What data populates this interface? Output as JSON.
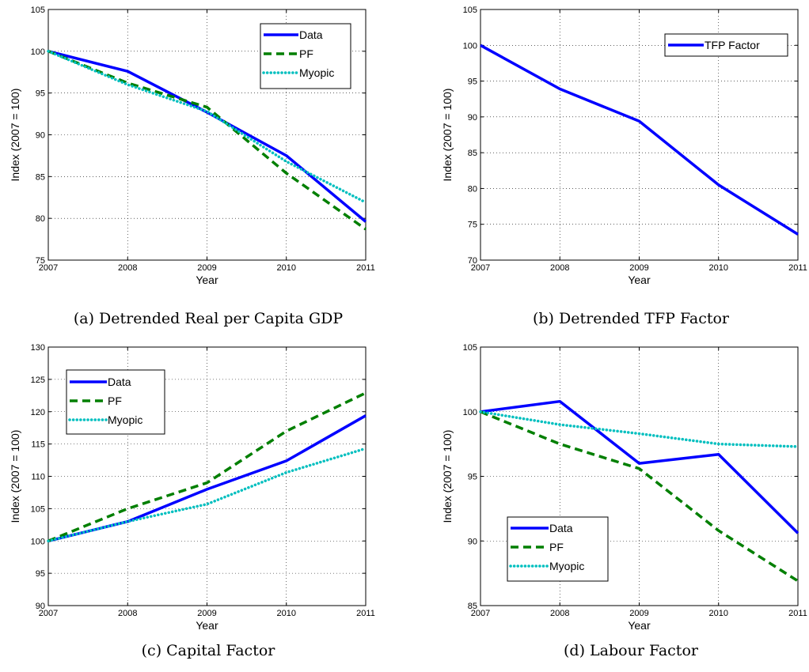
{
  "chart_data": [
    {
      "id": "a",
      "type": "line",
      "caption": "(a) Detrended Real per Capita GDP",
      "xlabel": "Year",
      "ylabel": "Index (2007 = 100)",
      "x": [
        2007,
        2008,
        2009,
        2010,
        2011
      ],
      "xlim": [
        2007,
        2011
      ],
      "ylim": [
        75,
        105
      ],
      "yticks": [
        75,
        80,
        85,
        90,
        95,
        100,
        105
      ],
      "grid": true,
      "legend_position": "top-right",
      "series": [
        {
          "name": "Data",
          "style": "solid",
          "color": "#0000ff",
          "values": [
            100,
            97.6,
            92.7,
            87.5,
            79.6
          ]
        },
        {
          "name": "PF",
          "style": "dashed",
          "color": "#007f00",
          "values": [
            100,
            96.2,
            93.3,
            85.4,
            78.7
          ]
        },
        {
          "name": "Myopic",
          "style": "dotted",
          "color": "#00bfbf",
          "values": [
            100,
            96.0,
            92.8,
            86.8,
            81.9
          ]
        }
      ]
    },
    {
      "id": "b",
      "type": "line",
      "caption": "(b) Detrended TFP Factor",
      "xlabel": "Year",
      "ylabel": "Index (2007 = 100)",
      "x": [
        2007,
        2008,
        2009,
        2010,
        2011
      ],
      "xlim": [
        2007,
        2011
      ],
      "ylim": [
        70,
        105
      ],
      "yticks": [
        70,
        75,
        80,
        85,
        90,
        95,
        100,
        105
      ],
      "grid": true,
      "legend_position": "top-right",
      "series": [
        {
          "name": "TFP Factor",
          "style": "solid",
          "color": "#0000ff",
          "values": [
            100,
            93.9,
            89.4,
            80.5,
            73.6
          ]
        }
      ]
    },
    {
      "id": "c",
      "type": "line",
      "caption": "(c) Capital Factor",
      "xlabel": "Year",
      "ylabel": "Index (2007 = 100)",
      "x": [
        2007,
        2008,
        2009,
        2010,
        2011
      ],
      "xlim": [
        2007,
        2011
      ],
      "ylim": [
        90,
        130
      ],
      "yticks": [
        90,
        95,
        100,
        105,
        110,
        115,
        120,
        125,
        130
      ],
      "grid": true,
      "legend_position": "top-left",
      "series": [
        {
          "name": "Data",
          "style": "solid",
          "color": "#0000ff",
          "values": [
            100,
            103.0,
            108.0,
            112.4,
            119.4
          ]
        },
        {
          "name": "PF",
          "style": "dashed",
          "color": "#007f00",
          "values": [
            100,
            105.0,
            109.0,
            117.0,
            122.9
          ]
        },
        {
          "name": "Myopic",
          "style": "dotted",
          "color": "#00bfbf",
          "values": [
            100,
            103.0,
            105.7,
            110.6,
            114.3
          ]
        }
      ]
    },
    {
      "id": "d",
      "type": "line",
      "caption": "(d) Labour Factor",
      "xlabel": "Year",
      "ylabel": "Index (2007 = 100)",
      "x": [
        2007,
        2008,
        2009,
        2010,
        2011
      ],
      "xlim": [
        2007,
        2011
      ],
      "ylim": [
        85,
        105
      ],
      "yticks": [
        85,
        90,
        95,
        100,
        105
      ],
      "grid": true,
      "legend_position": "bottom-left",
      "series": [
        {
          "name": "Data",
          "style": "solid",
          "color": "#0000ff",
          "values": [
            100,
            100.8,
            96.0,
            96.7,
            90.6
          ]
        },
        {
          "name": "PF",
          "style": "dashed",
          "color": "#007f00",
          "values": [
            100,
            97.5,
            95.6,
            90.8,
            86.9
          ]
        },
        {
          "name": "Myopic",
          "style": "dotted",
          "color": "#00bfbf",
          "values": [
            100,
            99.0,
            98.3,
            97.5,
            97.3
          ]
        }
      ]
    }
  ]
}
